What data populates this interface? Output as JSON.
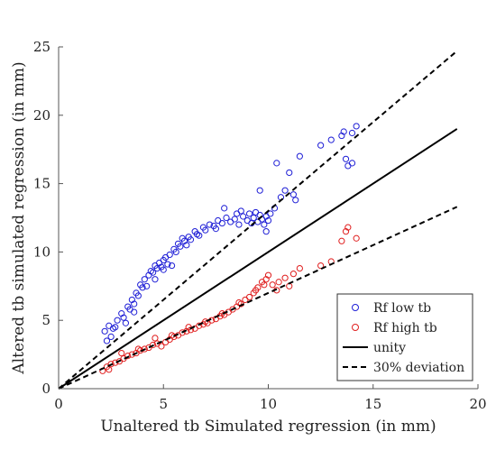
{
  "chart_data": {
    "type": "scatter",
    "xlabel": "Unaltered tb Simulated regression (in mm)",
    "ylabel": "Altered tb simulated regression (in mm)",
    "xlim": [
      0,
      20
    ],
    "ylim": [
      0,
      25
    ],
    "xticks": [
      0,
      5,
      10,
      15,
      20
    ],
    "yticks": [
      0,
      5,
      10,
      15,
      20,
      25
    ],
    "grid": false,
    "legend_position": "bottom-right",
    "series": [
      {
        "name": "Rf low tb",
        "kind": "scatter",
        "marker": "open-circle",
        "color": "#1f1fd6",
        "x": [
          2.2,
          2.3,
          2.4,
          2.5,
          2.6,
          2.8,
          3.0,
          3.1,
          3.3,
          3.4,
          3.5,
          3.6,
          3.7,
          3.8,
          3.9,
          4.0,
          4.1,
          4.2,
          4.3,
          4.4,
          4.5,
          4.6,
          4.7,
          4.8,
          4.9,
          5.0,
          5.1,
          5.2,
          5.3,
          5.5,
          5.6,
          5.7,
          5.8,
          5.9,
          6.0,
          6.2,
          6.3,
          6.5,
          6.7,
          6.9,
          7.0,
          7.2,
          7.4,
          7.6,
          7.8,
          8.0,
          8.2,
          8.4,
          8.6,
          8.8,
          9.0,
          9.1,
          9.2,
          9.3,
          9.4,
          9.5,
          9.6,
          9.7,
          9.8,
          9.9,
          10.0,
          10.1,
          10.3,
          10.6,
          10.8,
          11.0,
          11.2,
          11.5,
          12.5,
          13.0,
          13.5,
          13.7,
          13.8,
          14.0,
          14.2,
          3.2,
          4.6,
          5.4,
          6.6,
          7.9,
          8.7,
          9.6,
          2.7,
          3.6,
          5.0,
          6.1,
          7.5,
          8.5,
          9.9,
          10.4,
          11.3,
          13.6,
          14.0
        ],
        "y": [
          4.2,
          3.5,
          4.6,
          3.8,
          4.4,
          5.0,
          5.5,
          5.2,
          6.0,
          5.8,
          6.5,
          6.2,
          7.0,
          6.8,
          7.6,
          7.4,
          8.0,
          7.5,
          8.3,
          8.6,
          8.5,
          9.0,
          8.8,
          9.2,
          8.9,
          9.4,
          9.6,
          9.1,
          9.8,
          10.2,
          10.0,
          10.6,
          10.4,
          11.0,
          10.8,
          11.1,
          10.9,
          11.5,
          11.2,
          11.8,
          11.6,
          12.0,
          11.9,
          12.3,
          12.1,
          12.5,
          12.2,
          12.4,
          12.0,
          12.6,
          12.3,
          12.8,
          12.1,
          12.5,
          12.9,
          12.2,
          12.7,
          12.4,
          12.0,
          12.6,
          12.3,
          12.8,
          13.2,
          14.0,
          14.5,
          15.8,
          14.2,
          17.0,
          17.8,
          18.2,
          18.5,
          16.8,
          16.3,
          16.5,
          19.2,
          4.8,
          8.0,
          9.0,
          11.3,
          13.2,
          13.0,
          14.5,
          4.5,
          5.6,
          8.7,
          10.5,
          11.7,
          12.8,
          11.5,
          16.5,
          13.8,
          18.8,
          18.7
        ]
      },
      {
        "name": "Rf high tb",
        "kind": "scatter",
        "marker": "open-circle",
        "color": "#e01f1f",
        "x": [
          2.1,
          2.3,
          2.5,
          2.7,
          2.9,
          3.1,
          3.3,
          3.5,
          3.7,
          3.9,
          4.1,
          4.3,
          4.5,
          4.7,
          4.9,
          5.1,
          5.3,
          5.5,
          5.7,
          5.9,
          6.1,
          6.3,
          6.5,
          6.7,
          6.9,
          7.1,
          7.3,
          7.5,
          7.7,
          7.9,
          8.1,
          8.3,
          8.5,
          8.7,
          8.9,
          9.1,
          9.3,
          9.5,
          9.7,
          9.9,
          10.0,
          10.2,
          10.5,
          10.8,
          11.2,
          11.5,
          12.5,
          13.0,
          13.5,
          13.8,
          14.2,
          2.4,
          3.0,
          3.8,
          4.6,
          5.4,
          6.2,
          7.0,
          7.8,
          8.6,
          9.4,
          9.8,
          10.4,
          11.0,
          13.7
        ],
        "y": [
          1.3,
          1.6,
          1.8,
          1.9,
          2.0,
          2.2,
          2.4,
          2.5,
          2.6,
          2.8,
          2.9,
          3.0,
          3.2,
          3.3,
          3.1,
          3.4,
          3.6,
          3.8,
          3.9,
          4.1,
          4.2,
          4.3,
          4.4,
          4.6,
          4.7,
          4.8,
          5.0,
          5.1,
          5.3,
          5.4,
          5.6,
          5.8,
          6.0,
          6.2,
          6.5,
          6.7,
          7.0,
          7.4,
          7.8,
          8.0,
          8.3,
          7.6,
          7.8,
          8.1,
          8.4,
          8.8,
          9.0,
          9.3,
          10.8,
          11.8,
          11.0,
          1.4,
          2.6,
          2.9,
          3.7,
          3.9,
          4.5,
          4.9,
          5.5,
          6.3,
          7.2,
          7.6,
          7.2,
          7.5,
          11.5
        ]
      },
      {
        "name": "unity",
        "kind": "line",
        "style": "solid",
        "color": "#000000",
        "x": [
          0,
          19
        ],
        "y": [
          0,
          19
        ]
      },
      {
        "name": "30% deviation",
        "kind": "line",
        "style": "dashed",
        "color": "#000000",
        "x": [
          0,
          19
        ],
        "y": [
          0,
          24.7
        ]
      },
      {
        "name": "30% deviation",
        "kind": "line",
        "style": "dashed",
        "color": "#000000",
        "x": [
          0,
          19
        ],
        "y": [
          0,
          13.3
        ],
        "show_in_legend": false
      }
    ]
  }
}
